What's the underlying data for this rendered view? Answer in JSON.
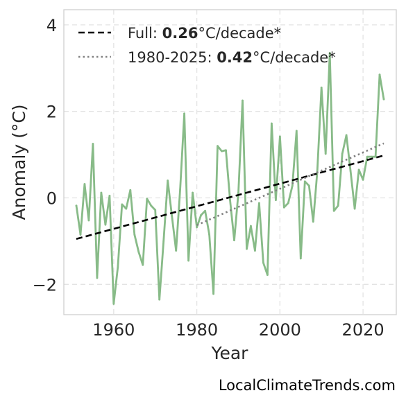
{
  "chart_data": {
    "type": "line",
    "xlabel": "Year",
    "ylabel": "Anomaly (°C)",
    "xlim": [
      1948,
      2028
    ],
    "ylim": [
      -2.7,
      4.35
    ],
    "xticks": [
      1960,
      1980,
      2000,
      2020
    ],
    "xtick_labels": [
      "1960",
      "1980",
      "2000",
      "2020"
    ],
    "yticks": [
      -2,
      0,
      2,
      4
    ],
    "ytick_labels": [
      "−2",
      "0",
      "2",
      "4"
    ],
    "grid": true,
    "legend_position": "top-left",
    "legend": [
      {
        "style": "dashed",
        "color": "#000000",
        "prefix": "Full: ",
        "bold": "0.26",
        "suffix": "°C/decade*"
      },
      {
        "style": "dotted",
        "color": "#808080",
        "prefix": "1980-2025: ",
        "bold": "0.42",
        "suffix": "°C/decade*"
      }
    ],
    "series": [
      {
        "color": "#88bb88",
        "x": [
          1951,
          1952,
          1953,
          1954,
          1955,
          1956,
          1957,
          1958,
          1959,
          1960,
          1961,
          1962,
          1963,
          1964,
          1965,
          1966,
          1967,
          1968,
          1969,
          1970,
          1971,
          1972,
          1973,
          1974,
          1975,
          1976,
          1977,
          1978,
          1979,
          1980,
          1981,
          1982,
          1983,
          1984,
          1985,
          1986,
          1987,
          1988,
          1989,
          1990,
          1991,
          1992,
          1993,
          1994,
          1995,
          1996,
          1997,
          1998,
          1999,
          2000,
          2001,
          2002,
          2003,
          2004,
          2005,
          2006,
          2007,
          2008,
          2009,
          2010,
          2011,
          2012,
          2013,
          2014,
          2015,
          2016,
          2017,
          2018,
          2019,
          2020,
          2021,
          2022,
          2023,
          2024,
          2025
        ],
        "y": [
          -0.18,
          -0.85,
          0.32,
          -0.52,
          1.25,
          -1.85,
          0.12,
          -0.62,
          0.05,
          -2.45,
          -1.6,
          -0.15,
          -0.25,
          0.18,
          -0.85,
          -1.25,
          -1.55,
          -0.02,
          -0.18,
          -0.28,
          -2.35,
          -1.0,
          0.4,
          -0.42,
          -1.22,
          0.2,
          1.95,
          -1.45,
          0.12,
          -0.68,
          -0.4,
          -0.3,
          -0.85,
          -2.22,
          1.2,
          1.08,
          1.1,
          -0.05,
          -0.98,
          0.12,
          2.25,
          -1.18,
          -0.65,
          -1.22,
          -0.12,
          -1.5,
          -1.78,
          1.72,
          -0.05,
          1.42,
          -0.22,
          -0.12,
          0.28,
          1.55,
          -1.4,
          0.38,
          0.28,
          -0.55,
          0.62,
          2.55,
          1.02,
          3.35,
          -0.3,
          -0.18,
          1.02,
          1.45,
          0.62,
          -0.25,
          0.65,
          0.42,
          0.95,
          0.95,
          0.95,
          2.85,
          2.28
        ]
      }
    ],
    "trends": [
      {
        "name_ref": "legend.0",
        "style": "dashed",
        "color": "#000000",
        "x": [
          1951,
          2025
        ],
        "y": [
          -0.95,
          0.98
        ]
      },
      {
        "name_ref": "legend.1",
        "style": "dotted",
        "color": "#808080",
        "x": [
          1980,
          2025
        ],
        "y": [
          -0.63,
          1.26
        ]
      }
    ]
  },
  "source_credit": "LocalClimateTrends.com"
}
